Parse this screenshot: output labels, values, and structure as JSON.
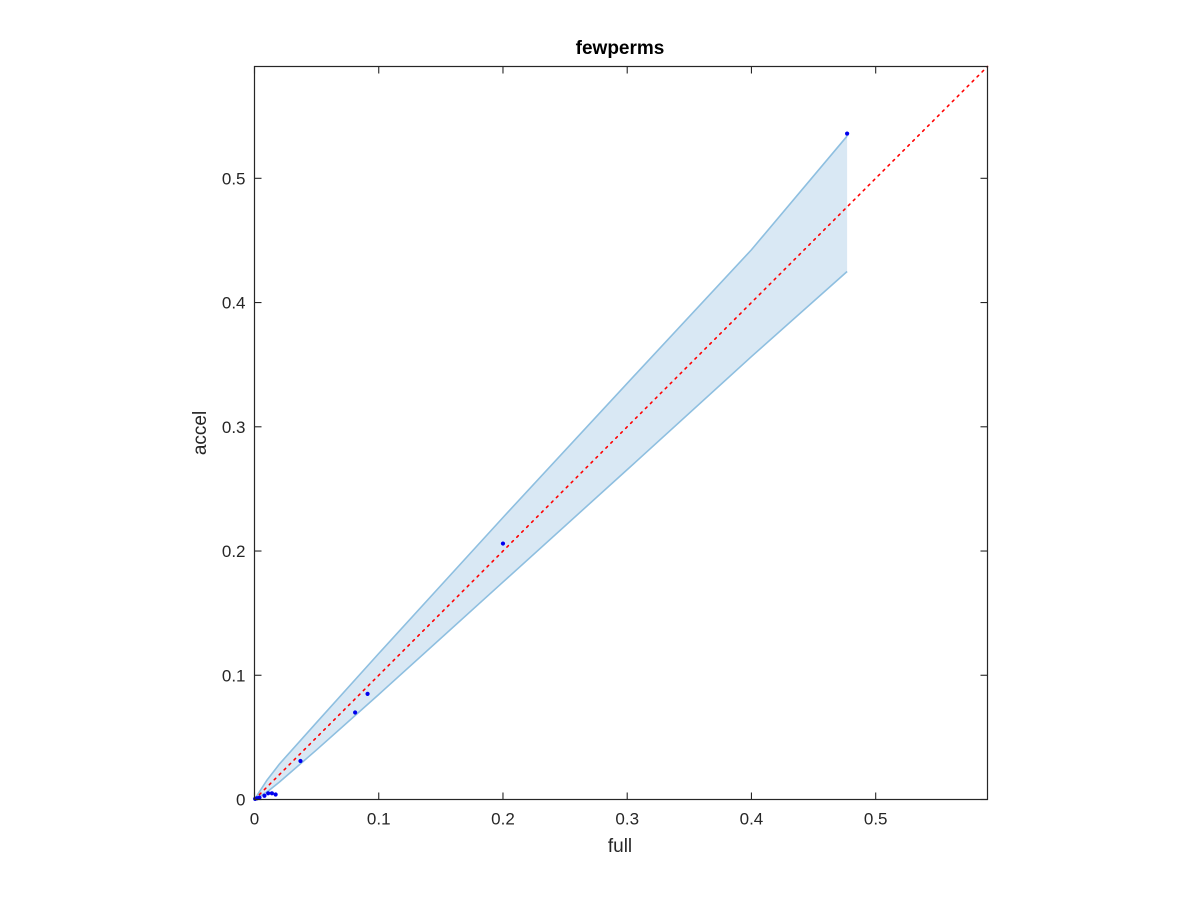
{
  "chart_data": {
    "type": "scatter",
    "title": "fewperms",
    "xlabel": "full",
    "ylabel": "accel",
    "xlim": [
      0,
      0.59
    ],
    "ylim": [
      0,
      0.59
    ],
    "xticks": [
      0,
      0.1,
      0.2,
      0.3,
      0.4,
      0.5
    ],
    "yticks": [
      0,
      0.1,
      0.2,
      0.3,
      0.4,
      0.5
    ],
    "xtick_labels": [
      "0",
      "0.1",
      "0.2",
      "0.3",
      "0.4",
      "0.5"
    ],
    "ytick_labels": [
      "0",
      "0.1",
      "0.2",
      "0.3",
      "0.4",
      "0.5"
    ],
    "grid": false,
    "points": {
      "x": [
        0.0005,
        0.002,
        0.004,
        0.008,
        0.011,
        0.014,
        0.017,
        0.037,
        0.081,
        0.091,
        0.2,
        0.477
      ],
      "y": [
        0.0005,
        0.001,
        0.0015,
        0.003,
        0.005,
        0.005,
        0.004,
        0.031,
        0.07,
        0.085,
        0.206,
        0.536
      ],
      "color": "#0000ee"
    },
    "band": {
      "x": [
        0,
        0.01,
        0.02,
        0.05,
        0.1,
        0.2,
        0.3,
        0.4,
        0.477
      ],
      "upper": [
        0,
        0.0155,
        0.0285,
        0.062,
        0.1175,
        0.227,
        0.335,
        0.4425,
        0.534
      ],
      "lower": [
        0,
        0.006,
        0.014,
        0.04,
        0.0845,
        0.175,
        0.2655,
        0.3565,
        0.425
      ],
      "fill_color": "#d9e8f4",
      "line_color": "#8ebfe0"
    },
    "reference_line": {
      "x": [
        0,
        0.59
      ],
      "y": [
        0,
        0.59
      ],
      "style": "dotted",
      "color": "#ff0000"
    }
  }
}
